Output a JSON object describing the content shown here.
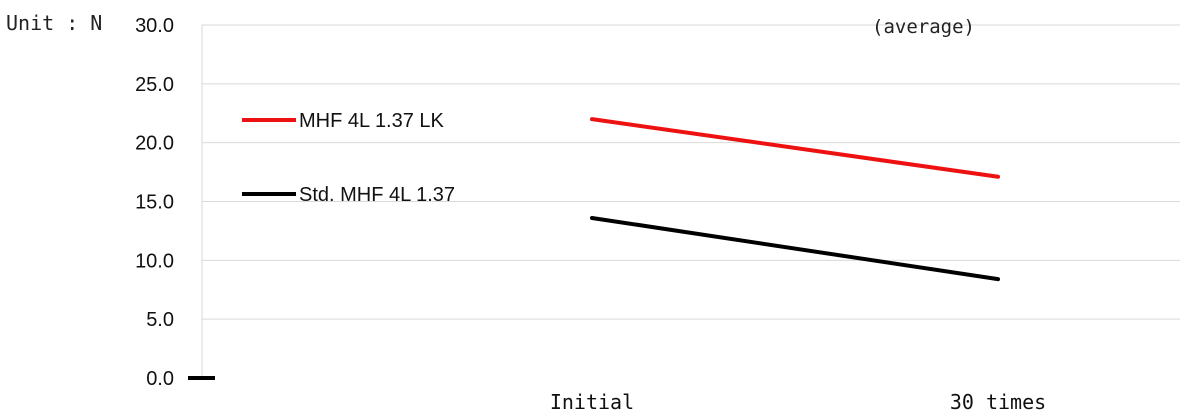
{
  "unit_label": "Unit : N",
  "note": "(average)",
  "chart_data": {
    "type": "line",
    "categories": [
      "Initial",
      "30 times"
    ],
    "series": [
      {
        "name": "MHF 4L 1.37 LK",
        "values": [
          22.0,
          17.1
        ],
        "color": "#ee1111"
      },
      {
        "name": "Std. MHF 4L 1.37",
        "values": [
          13.6,
          8.4
        ],
        "color": "#000000"
      }
    ],
    "yticks": [
      "0.0",
      "5.0",
      "10.0",
      "15.0",
      "20.0",
      "25.0",
      "30.0"
    ],
    "ylim": [
      0,
      30
    ],
    "grid": true,
    "legend_position": "top-left"
  }
}
